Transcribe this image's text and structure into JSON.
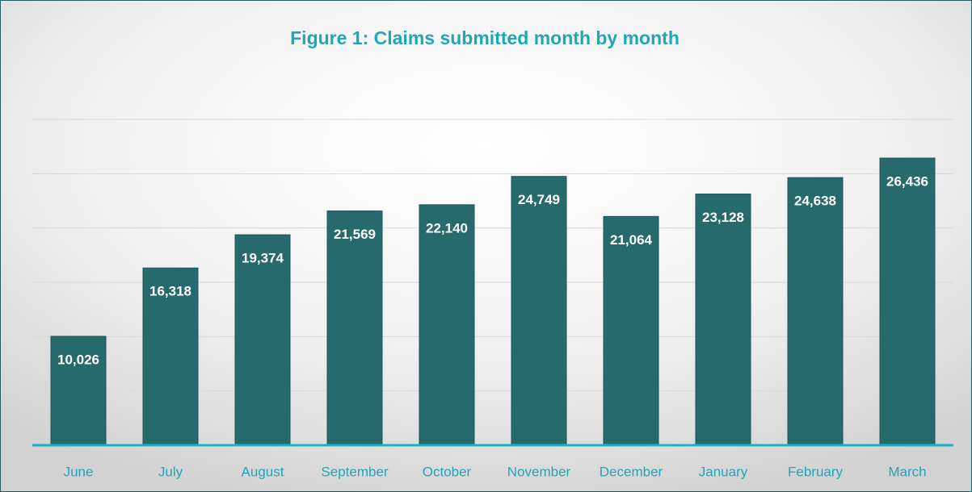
{
  "chart_data": {
    "type": "bar",
    "title": "Figure 1: Claims submitted month by month",
    "categories": [
      "June",
      "July",
      "August",
      "September",
      "October",
      "November",
      "December",
      "January",
      "February",
      "March"
    ],
    "values": [
      10026,
      16318,
      19374,
      21569,
      22140,
      24749,
      21064,
      23128,
      24638,
      26436
    ],
    "value_labels": [
      "10,026",
      "16,318",
      "19,374",
      "21,569",
      "22,140",
      "24,749",
      "21,064",
      "23,128",
      "24,638",
      "26,436"
    ],
    "color": "#266a6e",
    "ylim": [
      0,
      30000
    ],
    "yticks": [
      0,
      5000,
      10000,
      15000,
      20000,
      25000,
      30000
    ],
    "grid": true
  }
}
